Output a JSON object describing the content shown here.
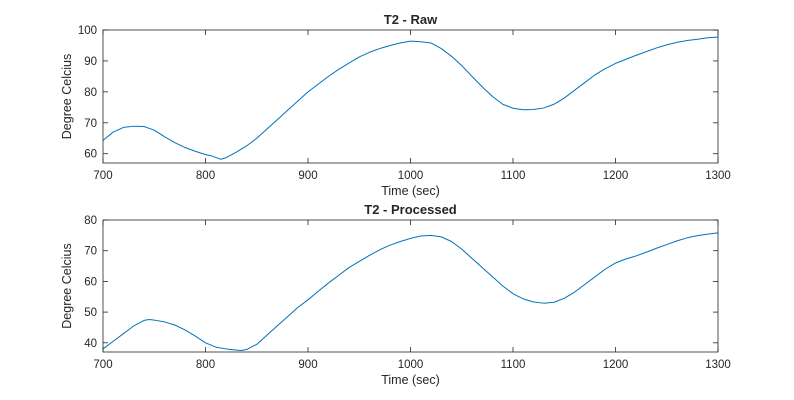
{
  "chart_data": [
    {
      "type": "line",
      "title": "T2 - Raw",
      "xlabel": "Time (sec)",
      "ylabel": "Degree Celcius",
      "xlim": [
        700,
        1300
      ],
      "ylim": [
        57,
        100
      ],
      "xticks": [
        700,
        800,
        900,
        1000,
        1100,
        1200,
        1300
      ],
      "yticks": [
        60,
        70,
        80,
        90,
        100
      ],
      "grid": false,
      "series": [
        {
          "color": "#0072BD",
          "points": [
            [
              700,
              64.3
            ],
            [
              710,
              67.0
            ],
            [
              720,
              68.5
            ],
            [
              730,
              68.9
            ],
            [
              740,
              68.8
            ],
            [
              750,
              67.6
            ],
            [
              760,
              65.5
            ],
            [
              770,
              63.6
            ],
            [
              780,
              62.0
            ],
            [
              790,
              60.8
            ],
            [
              800,
              59.7
            ],
            [
              805,
              59.4
            ],
            [
              810,
              58.8
            ],
            [
              815,
              58.2
            ],
            [
              820,
              58.7
            ],
            [
              830,
              60.5
            ],
            [
              840,
              62.5
            ],
            [
              850,
              65.0
            ],
            [
              860,
              68.0
            ],
            [
              870,
              71.0
            ],
            [
              880,
              74.0
            ],
            [
              890,
              77.0
            ],
            [
              900,
              80.0
            ],
            [
              910,
              82.5
            ],
            [
              920,
              85.0
            ],
            [
              930,
              87.3
            ],
            [
              940,
              89.3
            ],
            [
              950,
              91.3
            ],
            [
              960,
              92.8
            ],
            [
              970,
              94.0
            ],
            [
              980,
              95.0
            ],
            [
              990,
              95.8
            ],
            [
              1000,
              96.4
            ],
            [
              1010,
              96.2
            ],
            [
              1020,
              95.8
            ],
            [
              1030,
              94.0
            ],
            [
              1040,
              91.5
            ],
            [
              1050,
              88.5
            ],
            [
              1060,
              85.0
            ],
            [
              1070,
              81.6
            ],
            [
              1080,
              78.5
            ],
            [
              1090,
              76.0
            ],
            [
              1100,
              74.7
            ],
            [
              1110,
              74.2
            ],
            [
              1120,
              74.3
            ],
            [
              1130,
              74.8
            ],
            [
              1140,
              76.0
            ],
            [
              1150,
              78.0
            ],
            [
              1160,
              80.5
            ],
            [
              1170,
              83.0
            ],
            [
              1180,
              85.5
            ],
            [
              1190,
              87.5
            ],
            [
              1200,
              89.2
            ],
            [
              1210,
              90.5
            ],
            [
              1220,
              91.8
            ],
            [
              1230,
              93.0
            ],
            [
              1240,
              94.2
            ],
            [
              1250,
              95.2
            ],
            [
              1260,
              96.0
            ],
            [
              1270,
              96.6
            ],
            [
              1280,
              97.0
            ],
            [
              1290,
              97.5
            ],
            [
              1300,
              97.7
            ]
          ]
        }
      ]
    },
    {
      "type": "line",
      "title": "T2 - Processed",
      "xlabel": "Time (sec)",
      "ylabel": "Degree Celcius",
      "xlim": [
        700,
        1300
      ],
      "ylim": [
        37,
        80
      ],
      "xticks": [
        700,
        800,
        900,
        1000,
        1100,
        1200,
        1300
      ],
      "yticks": [
        40,
        50,
        60,
        70,
        80
      ],
      "grid": false,
      "series": [
        {
          "color": "#0072BD",
          "points": [
            [
              700,
              38.0
            ],
            [
              710,
              40.5
            ],
            [
              720,
              43.0
            ],
            [
              730,
              45.5
            ],
            [
              740,
              47.3
            ],
            [
              745,
              47.6
            ],
            [
              750,
              47.4
            ],
            [
              760,
              46.8
            ],
            [
              770,
              45.8
            ],
            [
              780,
              44.2
            ],
            [
              790,
              42.2
            ],
            [
              800,
              40.0
            ],
            [
              810,
              38.6
            ],
            [
              820,
              38.0
            ],
            [
              830,
              37.6
            ],
            [
              835,
              37.5
            ],
            [
              840,
              37.8
            ],
            [
              850,
              39.5
            ],
            [
              860,
              42.5
            ],
            [
              870,
              45.5
            ],
            [
              880,
              48.5
            ],
            [
              890,
              51.5
            ],
            [
              900,
              54.0
            ],
            [
              910,
              56.8
            ],
            [
              920,
              59.5
            ],
            [
              930,
              62.0
            ],
            [
              940,
              64.5
            ],
            [
              950,
              66.5
            ],
            [
              960,
              68.5
            ],
            [
              970,
              70.3
            ],
            [
              980,
              71.8
            ],
            [
              990,
              73.0
            ],
            [
              1000,
              74.0
            ],
            [
              1010,
              74.8
            ],
            [
              1020,
              75.0
            ],
            [
              1030,
              74.5
            ],
            [
              1040,
              73.0
            ],
            [
              1050,
              70.5
            ],
            [
              1060,
              67.5
            ],
            [
              1070,
              64.5
            ],
            [
              1080,
              61.5
            ],
            [
              1090,
              58.5
            ],
            [
              1100,
              56.0
            ],
            [
              1110,
              54.3
            ],
            [
              1120,
              53.3
            ],
            [
              1130,
              52.9
            ],
            [
              1140,
              53.2
            ],
            [
              1150,
              54.5
            ],
            [
              1160,
              56.5
            ],
            [
              1170,
              59.0
            ],
            [
              1180,
              61.5
            ],
            [
              1190,
              64.0
            ],
            [
              1200,
              66.0
            ],
            [
              1210,
              67.3
            ],
            [
              1220,
              68.3
            ],
            [
              1230,
              69.5
            ],
            [
              1240,
              70.8
            ],
            [
              1250,
              72.0
            ],
            [
              1260,
              73.2
            ],
            [
              1270,
              74.2
            ],
            [
              1280,
              74.9
            ],
            [
              1290,
              75.4
            ],
            [
              1300,
              75.8
            ]
          ]
        }
      ]
    }
  ]
}
